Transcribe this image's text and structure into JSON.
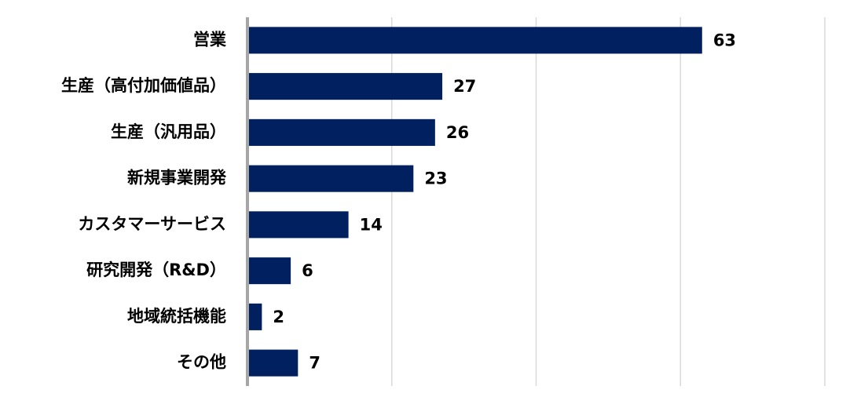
{
  "chart_data": {
    "type": "bar",
    "orientation": "horizontal",
    "categories": [
      "営業",
      "生産（高付加価値品）",
      "生産（汎用品）",
      "新規事業開発",
      "カスタマーサービス",
      "研究開発（R&D）",
      "地域統括機能",
      "その他"
    ],
    "values": [
      63,
      27,
      26,
      23,
      14,
      6,
      2,
      7
    ],
    "color": "#002060",
    "xlim": [
      0,
      80
    ],
    "xticks": [
      0,
      20,
      40,
      60,
      80
    ],
    "grid": true
  }
}
